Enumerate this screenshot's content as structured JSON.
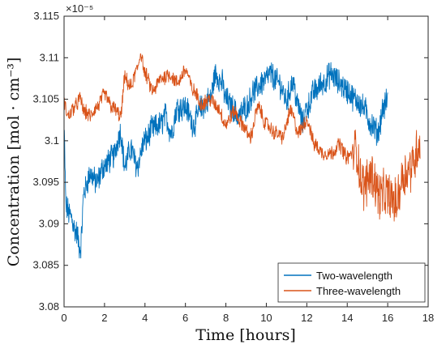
{
  "chart_data": {
    "type": "line",
    "xlabel": "Time [hours]",
    "ylabel": "Concentration [mol · cm⁻³]",
    "y_exponent_label": "×10⁻⁵",
    "xlim": [
      0,
      18
    ],
    "ylim": [
      3.08,
      3.115
    ],
    "x_ticks": [
      0,
      2,
      4,
      6,
      8,
      10,
      12,
      14,
      16,
      18
    ],
    "x_tick_labels": [
      "0",
      "2",
      "4",
      "6",
      "8",
      "10",
      "12",
      "14",
      "16",
      "18"
    ],
    "y_ticks": [
      3.08,
      3.085,
      3.09,
      3.095,
      3.1,
      3.105,
      3.11,
      3.115
    ],
    "y_tick_labels": [
      "3.08",
      "3.085",
      "3.09",
      "3.095",
      "3.1",
      "3.105",
      "3.11",
      "3.115"
    ],
    "grid": false,
    "legend_position": "bottom-right",
    "series": [
      {
        "name": "Two-wavelength",
        "color": "#0072BD",
        "noise": 0.0014,
        "x": [
          0,
          0.1,
          0.3,
          0.6,
          0.8,
          1.0,
          1.3,
          1.6,
          2.0,
          2.4,
          2.8,
          3.0,
          3.3,
          3.6,
          4.0,
          4.4,
          4.8,
          5.0,
          5.3,
          5.6,
          6.0,
          6.4,
          6.8,
          7.2,
          7.5,
          7.8,
          8.0,
          8.3,
          8.6,
          9.0,
          9.4,
          9.8,
          10.2,
          10.6,
          11.0,
          11.3,
          11.6,
          11.8,
          12.0,
          12.4,
          12.8,
          13.2,
          13.6,
          14.0,
          14.4,
          14.8,
          15.2,
          15.5,
          15.8,
          16.0
        ],
        "y": [
          3.101,
          3.092,
          3.091,
          3.089,
          3.087,
          3.094,
          3.096,
          3.095,
          3.097,
          3.098,
          3.101,
          3.097,
          3.099,
          3.097,
          3.1,
          3.1015,
          3.102,
          3.103,
          3.101,
          3.104,
          3.104,
          3.102,
          3.104,
          3.105,
          3.108,
          3.107,
          3.105,
          3.104,
          3.103,
          3.104,
          3.106,
          3.107,
          3.108,
          3.107,
          3.105,
          3.107,
          3.104,
          3.102,
          3.104,
          3.106,
          3.107,
          3.108,
          3.107,
          3.106,
          3.105,
          3.104,
          3.102,
          3.101,
          3.104,
          3.105
        ]
      },
      {
        "name": "Three-wavelength",
        "color": "#D95319",
        "noise": 0.0008,
        "x": [
          0,
          0.2,
          0.5,
          0.8,
          1.0,
          1.3,
          1.6,
          2.0,
          2.4,
          2.8,
          3.0,
          3.3,
          3.6,
          3.8,
          4.0,
          4.4,
          4.8,
          5.2,
          5.6,
          6.0,
          6.4,
          6.8,
          7.2,
          7.6,
          8.0,
          8.4,
          8.8,
          9.2,
          9.6,
          10.0,
          10.4,
          10.8,
          11.2,
          11.6,
          12.0,
          12.4,
          12.8,
          13.2,
          13.6,
          14.0,
          14.4,
          14.8,
          15.2,
          15.6,
          16.0,
          16.4,
          16.8,
          17.2,
          17.6
        ],
        "y": [
          3.1045,
          3.103,
          3.104,
          3.105,
          3.1035,
          3.103,
          3.104,
          3.1055,
          3.104,
          3.103,
          3.1075,
          3.1065,
          3.1085,
          3.1105,
          3.108,
          3.106,
          3.1075,
          3.108,
          3.107,
          3.1085,
          3.106,
          3.1045,
          3.105,
          3.104,
          3.102,
          3.1035,
          3.102,
          3.1005,
          3.104,
          3.102,
          3.101,
          3.1005,
          3.1035,
          3.101,
          3.1025,
          3.0995,
          3.0985,
          3.0985,
          3.0995,
          3.098,
          3.099,
          3.0945,
          3.096,
          3.0935,
          3.0935,
          3.0925,
          3.096,
          3.097,
          3.1
        ]
      }
    ]
  }
}
